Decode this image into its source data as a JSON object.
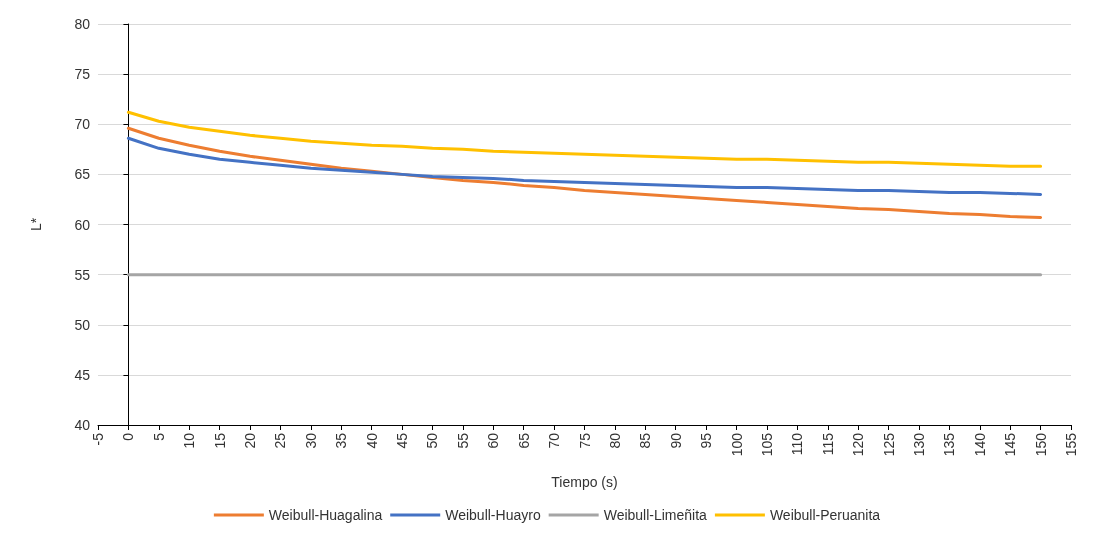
{
  "chart_data": {
    "type": "line",
    "xlabel": "Tiempo (s)",
    "ylabel": "L*",
    "x": [
      0,
      5,
      10,
      15,
      20,
      25,
      30,
      35,
      40,
      45,
      50,
      55,
      60,
      65,
      70,
      75,
      80,
      85,
      90,
      95,
      100,
      105,
      110,
      115,
      120,
      125,
      130,
      135,
      140,
      145,
      150
    ],
    "series": [
      {
        "name": "Weibull-Huagalina",
        "color": "#ed7d31",
        "values": [
          69.6,
          68.6,
          67.9,
          67.3,
          66.8,
          66.4,
          66.0,
          65.6,
          65.3,
          65.0,
          64.7,
          64.4,
          64.2,
          63.9,
          63.7,
          63.4,
          63.2,
          63.0,
          62.8,
          62.6,
          62.4,
          62.2,
          62.0,
          61.8,
          61.6,
          61.5,
          61.3,
          61.1,
          61.0,
          60.8,
          60.7
        ]
      },
      {
        "name": "Weibull-Huayro",
        "color": "#4472c4",
        "values": [
          68.6,
          67.6,
          67.0,
          66.5,
          66.2,
          65.9,
          65.6,
          65.4,
          65.2,
          65.0,
          64.8,
          64.7,
          64.6,
          64.4,
          64.3,
          64.2,
          64.1,
          64.0,
          63.9,
          63.8,
          63.7,
          63.7,
          63.6,
          63.5,
          63.4,
          63.4,
          63.3,
          63.2,
          63.2,
          63.1,
          63.0
        ]
      },
      {
        "name": "Weibull-Limeñita",
        "color": "#a5a5a5",
        "values": [
          55,
          55,
          55,
          55,
          55,
          55,
          55,
          55,
          55,
          55,
          55,
          55,
          55,
          55,
          55,
          55,
          55,
          55,
          55,
          55,
          55,
          55,
          55,
          55,
          55,
          55,
          55,
          55,
          55,
          55,
          55
        ]
      },
      {
        "name": "Weibull-Peruanita",
        "color": "#ffc000",
        "values": [
          71.2,
          70.3,
          69.7,
          69.3,
          68.9,
          68.6,
          68.3,
          68.1,
          67.9,
          67.8,
          67.6,
          67.5,
          67.3,
          67.2,
          67.1,
          67.0,
          66.9,
          66.8,
          66.7,
          66.6,
          66.5,
          66.5,
          66.4,
          66.3,
          66.2,
          66.2,
          66.1,
          66.0,
          65.9,
          65.8,
          65.8
        ]
      }
    ],
    "xlim": [
      -5,
      155
    ],
    "xticks": [
      -5,
      0,
      5,
      10,
      15,
      20,
      25,
      30,
      35,
      40,
      45,
      50,
      55,
      60,
      65,
      70,
      75,
      80,
      85,
      90,
      95,
      100,
      105,
      110,
      115,
      120,
      125,
      130,
      135,
      140,
      145,
      150,
      155
    ],
    "ylim": [
      40,
      80
    ],
    "yticks": [
      40,
      45,
      50,
      55,
      60,
      65,
      70,
      75,
      80
    ],
    "grid": "y",
    "legend": "bottom",
    "marker": "none",
    "line_style": "solid"
  }
}
